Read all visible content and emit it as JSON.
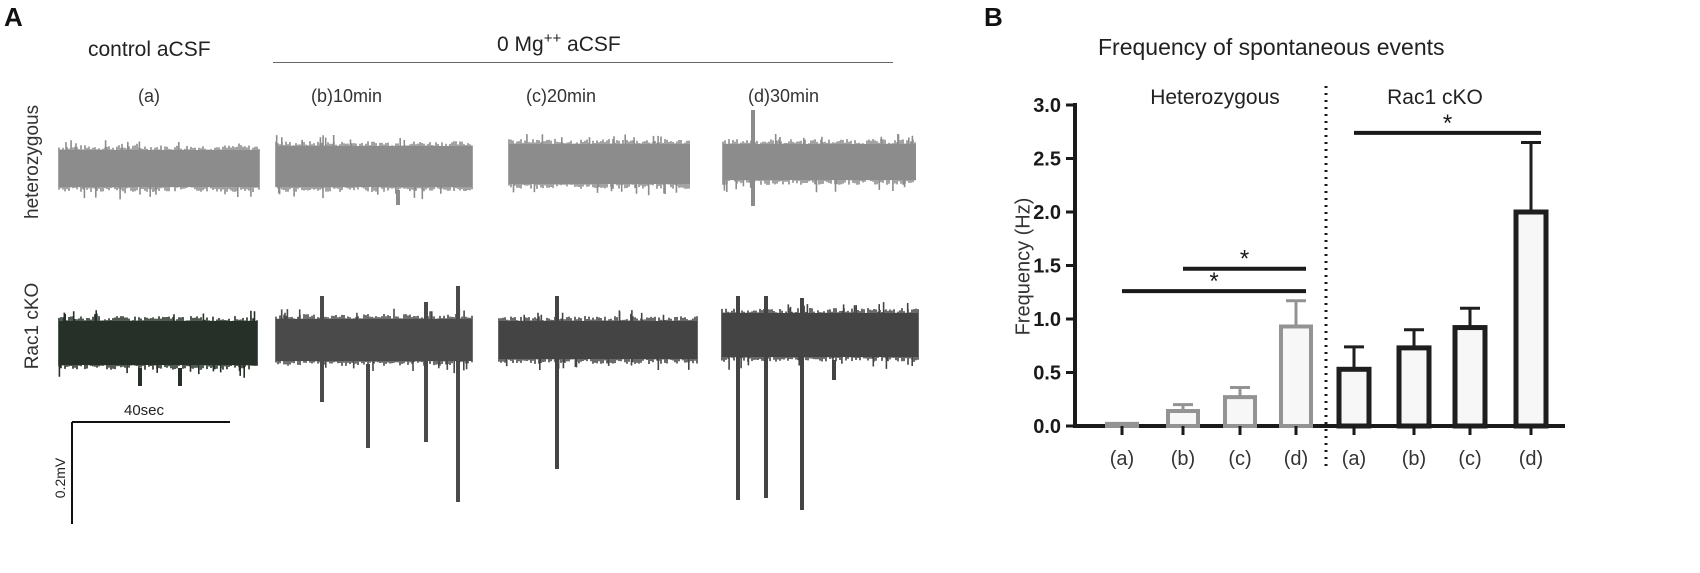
{
  "panel_a": {
    "letter": "A",
    "control_header": "control aCSF",
    "treatment_header_prefix": "0 Mg",
    "treatment_header_sup": "++",
    "treatment_header_suffix": " aCSF",
    "conditions": [
      "(a)",
      "(b)10min",
      "(c)20min",
      "(d)30min"
    ],
    "rows": [
      "heterozygous",
      "Rac1 cKO"
    ],
    "trace_colors": {
      "heterozygous": "#8c8c8c",
      "rac1_ko": [
        "#263028",
        "#4a4a4a",
        "#444444",
        "#444444"
      ]
    },
    "scale_time": "40sec",
    "scale_voltage": "0.2mV"
  },
  "panel_b": {
    "letter": "B"
  },
  "chart_data": {
    "type": "bar",
    "title": "Frequency of spontaneous events",
    "ylabel": "Frequency (Hz)",
    "xlabel": "",
    "ylim": [
      0,
      3.0
    ],
    "yticks": [
      0.0,
      0.5,
      1.0,
      1.5,
      2.0,
      2.5,
      3.0
    ],
    "ytick_labels": [
      "0.0",
      "0.5",
      "1.0",
      "1.5",
      "2.0",
      "2.5",
      "3.0"
    ],
    "groups": [
      {
        "name": "Heterozygous",
        "color": "#939393",
        "categories": [
          "(a)",
          "(b)",
          "(c)",
          "(d)"
        ],
        "values": [
          0.02,
          0.14,
          0.27,
          0.93
        ],
        "errors": [
          0.0,
          0.06,
          0.09,
          0.24
        ]
      },
      {
        "name": "Rac1 cKO",
        "color": "#1e1e1e",
        "categories": [
          "(a)",
          "(b)",
          "(c)",
          "(d)"
        ],
        "values": [
          0.53,
          0.73,
          0.92,
          2.0
        ],
        "errors": [
          0.21,
          0.17,
          0.18,
          0.65
        ]
      }
    ],
    "significance": [
      {
        "group": 0,
        "from": 1,
        "to": 3,
        "y": 1.47,
        "label": "*"
      },
      {
        "group": 0,
        "from": 0,
        "to": 3,
        "y": 1.26,
        "label": "*"
      },
      {
        "group": 1,
        "from": 0,
        "to": 3,
        "y": 2.74,
        "label": "*"
      }
    ],
    "grid": false,
    "legend": "none"
  }
}
